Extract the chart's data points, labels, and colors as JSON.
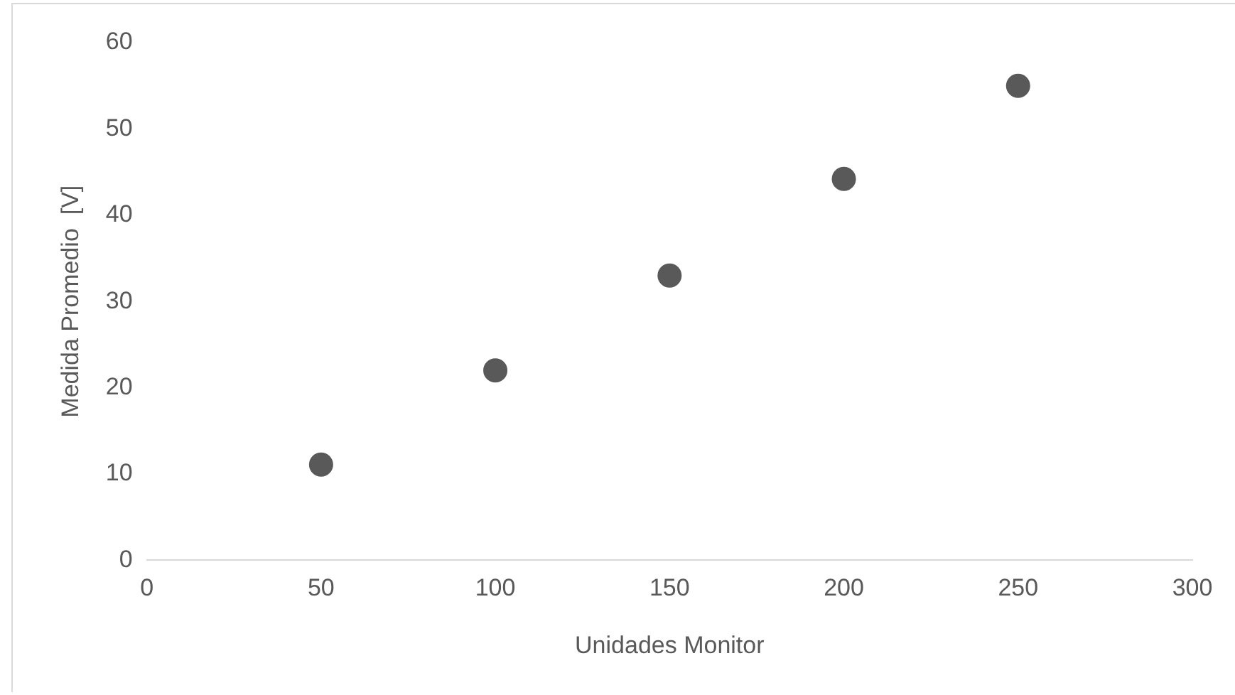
{
  "chart_data": {
    "type": "scatter",
    "xlabel": "Unidades Monitor",
    "ylabel": "Medida Promedio  [V]",
    "x": [
      50,
      100,
      150,
      200,
      250
    ],
    "series": [
      {
        "color": "#595959",
        "values": [
          11.1,
          22,
          33,
          44.2,
          55
        ]
      }
    ],
    "xlim": [
      0,
      300
    ],
    "xticks": [
      0,
      50,
      100,
      150,
      200,
      250,
      300
    ],
    "ylim": [
      0,
      60
    ],
    "yticks": [
      0,
      10,
      20,
      30,
      40,
      50,
      60
    ],
    "grid": false,
    "legend": false,
    "marker": "circle"
  }
}
